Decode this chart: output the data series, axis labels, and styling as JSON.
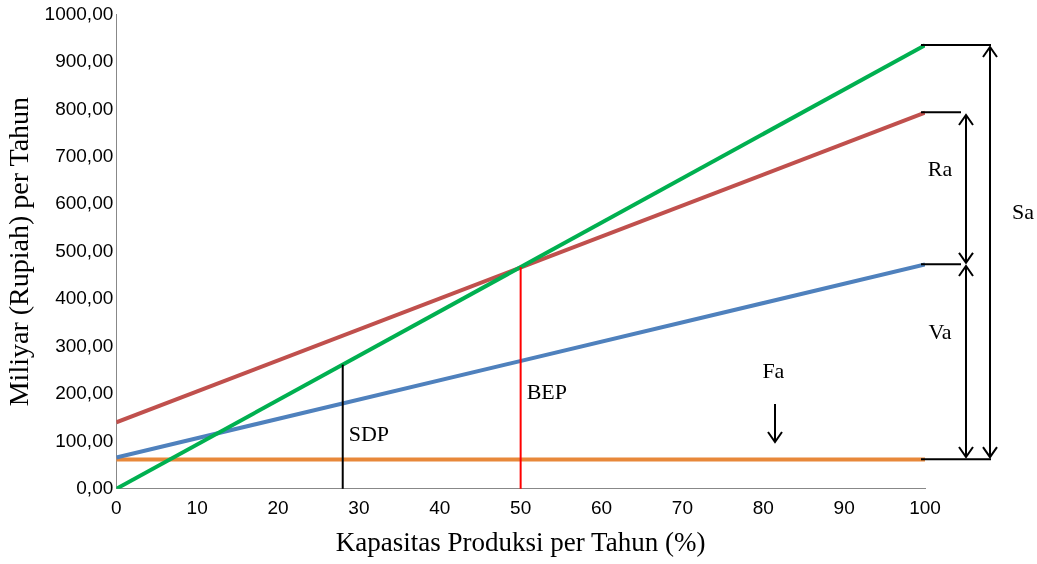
{
  "chart_data": {
    "type": "line",
    "xlabel": "Kapasitas Produksi per Tahun (%)",
    "ylabel": "Miliyar (Rupiah) per Tahun",
    "x": [
      0,
      100
    ],
    "series": [
      {
        "color": "#00b050",
        "values": [
          0,
          935
        ]
      },
      {
        "color": "#c0504d",
        "values": [
          140,
          793
        ]
      },
      {
        "color": "#4f81bd",
        "values": [
          66,
          473
        ]
      },
      {
        "color": "#e8883a",
        "values": [
          62,
          62
        ]
      }
    ],
    "xlim": [
      0,
      100
    ],
    "xticks": [
      0,
      10,
      20,
      30,
      40,
      50,
      60,
      70,
      80,
      90,
      100
    ],
    "ylim": [
      0,
      1000
    ],
    "yticks": [
      {
        "value": 0,
        "label": "0,00"
      },
      {
        "value": 100,
        "label": "100,00"
      },
      {
        "value": 200,
        "label": "200,00"
      },
      {
        "value": 300,
        "label": "300,00"
      },
      {
        "value": 400,
        "label": "400,00"
      },
      {
        "value": 500,
        "label": "500,00"
      },
      {
        "value": 600,
        "label": "600,00"
      },
      {
        "value": 700,
        "label": "700,00"
      },
      {
        "value": 800,
        "label": "800,00"
      },
      {
        "value": 900,
        "label": "900,00"
      },
      {
        "value": 1000,
        "label": "1000,00"
      }
    ],
    "ref_lines": [
      {
        "axis": "x",
        "value": 28,
        "label": "SDP",
        "color": "#000000"
      },
      {
        "axis": "x",
        "value": 50,
        "label": "BEP",
        "color": "#ff0000"
      }
    ],
    "annotations": [
      "Ra",
      "Sa",
      "Va",
      "Fa"
    ],
    "grid": false,
    "legend": false,
    "marker": "none",
    "line_style": "solid"
  }
}
